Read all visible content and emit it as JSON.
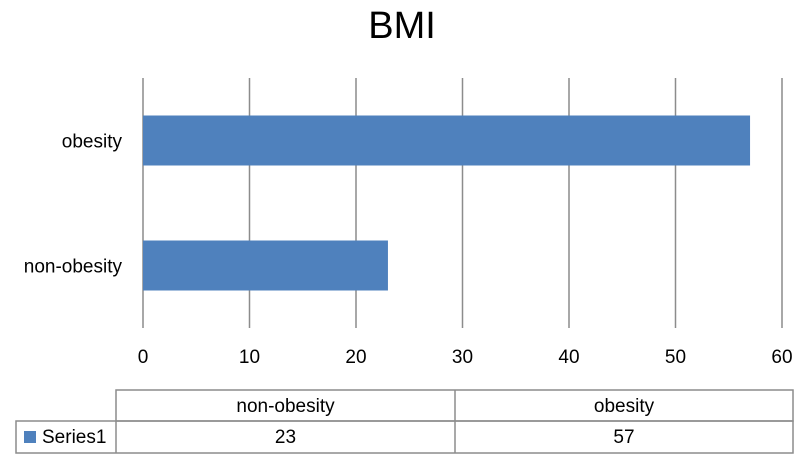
{
  "chart_data": {
    "type": "bar",
    "orientation": "horizontal",
    "title": "BMI",
    "categories": [
      "non-obesity",
      "obesity"
    ],
    "series": [
      {
        "name": "Series1",
        "values": [
          23,
          57
        ],
        "color": "#4f81bd"
      }
    ],
    "xlim": [
      0,
      60
    ],
    "x_ticks": [
      0,
      10,
      20,
      30,
      40,
      50,
      60
    ],
    "grid": true,
    "data_table": {
      "headers": [
        "non-obesity",
        "obesity"
      ],
      "rows": [
        {
          "series": "Series1",
          "values": [
            "23",
            "57"
          ]
        }
      ]
    }
  }
}
